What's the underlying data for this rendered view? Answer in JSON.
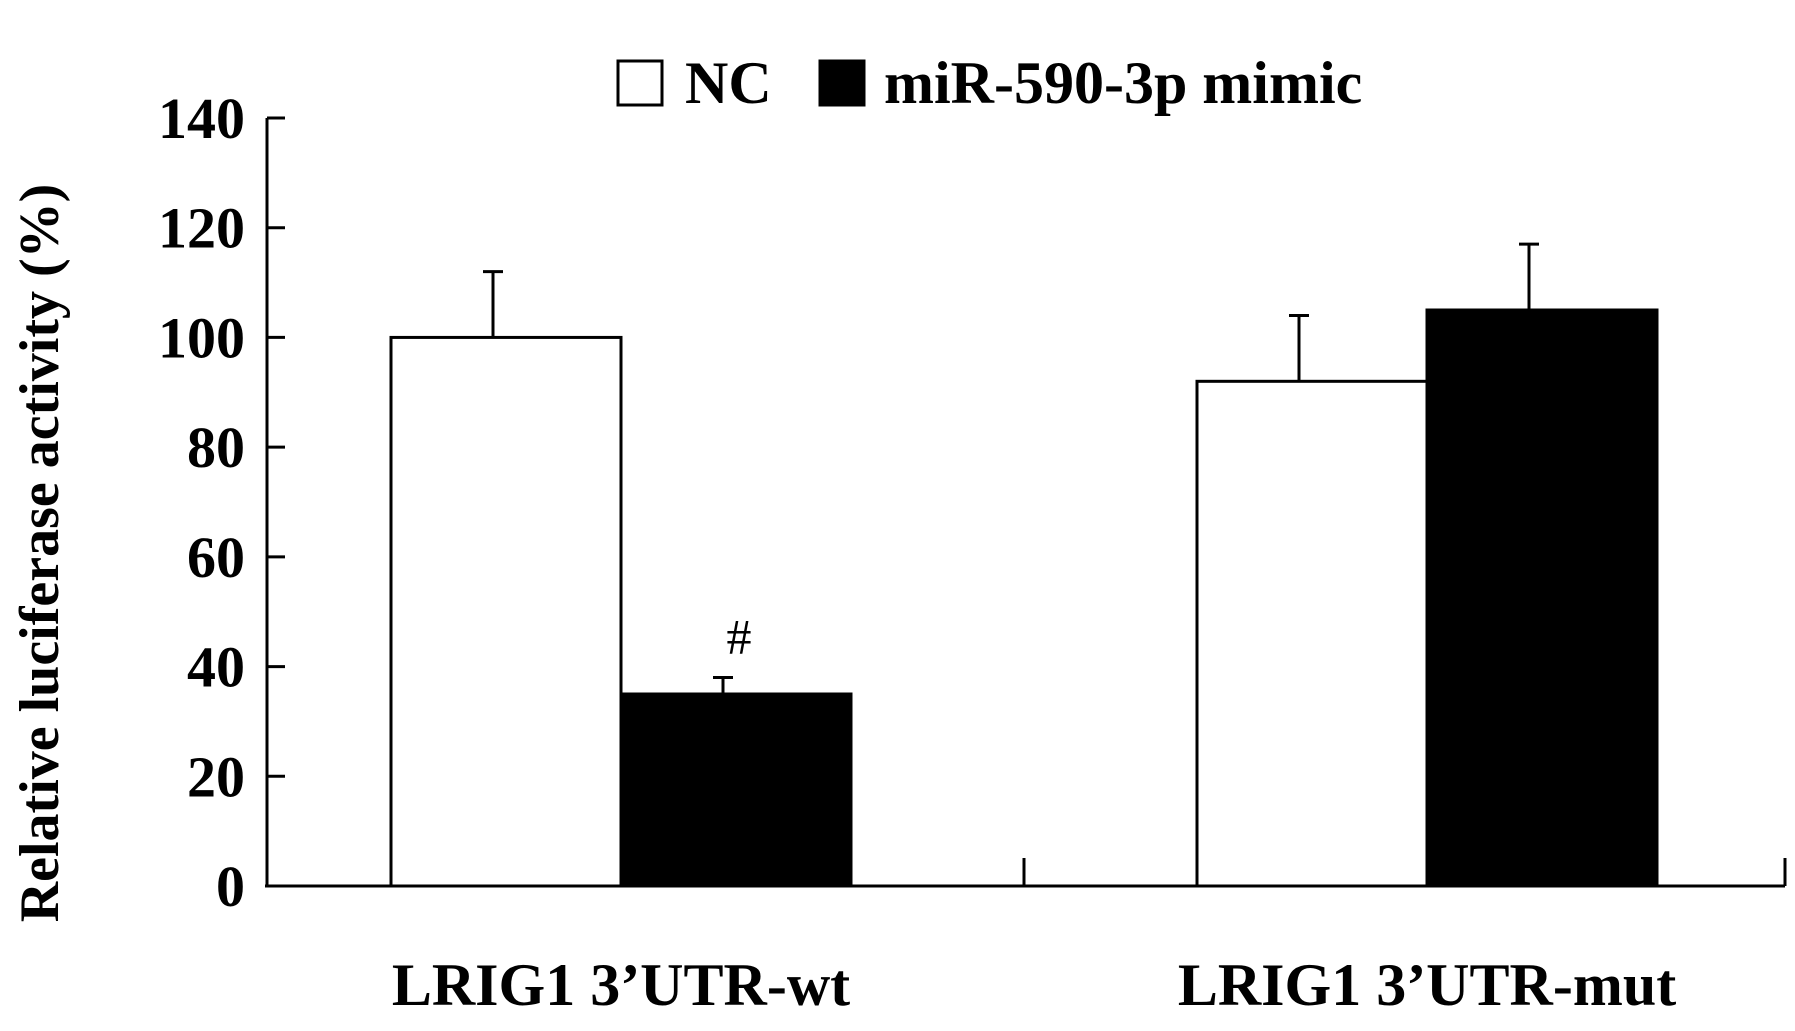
{
  "chart_data": {
    "type": "bar",
    "title": "",
    "xlabel": "",
    "ylabel": "Relative luciferase activity (%)",
    "ylim": [
      0,
      140
    ],
    "yticks": [
      "0",
      "20",
      "40",
      "60",
      "80",
      "100",
      "120",
      "140"
    ],
    "categories": [
      "LRIG1 3’UTR-wt",
      "LRIG1 3’UTR-mut"
    ],
    "series": [
      {
        "name": "NC",
        "values": [
          100,
          92
        ],
        "errors": [
          12,
          12
        ],
        "color": "#ffffff"
      },
      {
        "name": "miR-590-3p mimic",
        "values": [
          35,
          105
        ],
        "errors": [
          3,
          12
        ],
        "color": "#000000"
      }
    ],
    "annotations": [
      {
        "text": "#",
        "series": 1,
        "category": 0
      }
    ],
    "legend_position": "top",
    "grid": false
  }
}
